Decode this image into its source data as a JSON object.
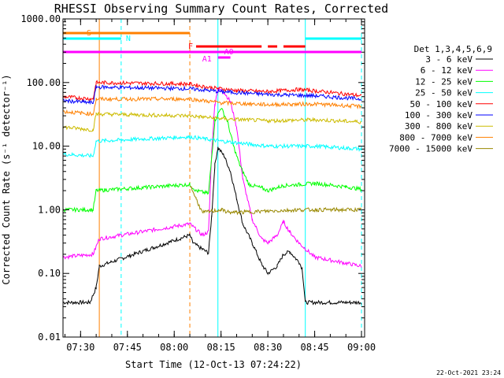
{
  "chart_data": {
    "type": "line",
    "title": "RHESSI Observing Summary Count Rates, Corrected",
    "xlabel": "Start Time (12-Oct-13 07:24:22)",
    "ylabel": "Corrected Count Rate (s⁻¹ detector⁻¹)",
    "yscale": "log",
    "ylim": [
      0.01,
      1000
    ],
    "xlim": [
      "07:24:22",
      "09:01:00"
    ],
    "x_ticks": [
      "07:30",
      "07:45",
      "08:00",
      "08:15",
      "08:30",
      "08:45",
      "09:00"
    ],
    "y_ticks": [
      "1000.00",
      "100.00",
      "10.00",
      "1.00",
      "0.10",
      "0.01"
    ],
    "legend_title": "Det 1,3,4,5,6,9",
    "legend_position": "right",
    "series": [
      {
        "name": "3 - 6 keV",
        "color": "#000000",
        "points": [
          [
            "07:24:22",
            0.035
          ],
          [
            "07:33",
            0.035
          ],
          [
            "07:35",
            0.06
          ],
          [
            "07:36",
            0.13
          ],
          [
            "08:05",
            0.4
          ],
          [
            "08:06",
            0.3
          ],
          [
            "08:09",
            0.24
          ],
          [
            "08:11",
            0.21
          ],
          [
            "08:12",
            0.8
          ],
          [
            "08:13",
            5
          ],
          [
            "08:14",
            9.5
          ],
          [
            "08:16",
            7
          ],
          [
            "08:18",
            4
          ],
          [
            "08:20",
            1.5
          ],
          [
            "08:22",
            0.6
          ],
          [
            "08:25",
            0.3
          ],
          [
            "08:28",
            0.14
          ],
          [
            "08:30",
            0.1
          ],
          [
            "08:33",
            0.13
          ],
          [
            "08:35",
            0.2
          ],
          [
            "08:37",
            0.22
          ],
          [
            "08:40",
            0.15
          ],
          [
            "08:41",
            0.12
          ],
          [
            "08:42",
            0.035
          ],
          [
            "09:00",
            0.035
          ]
        ]
      },
      {
        "name": "6 - 12 keV",
        "color": "#ff00ff",
        "points": [
          [
            "07:24:22",
            0.18
          ],
          [
            "07:34",
            0.2
          ],
          [
            "07:36",
            0.35
          ],
          [
            "08:05",
            0.6
          ],
          [
            "08:09",
            0.4
          ],
          [
            "08:11",
            0.45
          ],
          [
            "08:12",
            8
          ],
          [
            "08:13",
            45
          ],
          [
            "08:14",
            80
          ],
          [
            "08:16",
            70
          ],
          [
            "08:18",
            50
          ],
          [
            "08:20",
            20
          ],
          [
            "08:22",
            3
          ],
          [
            "08:25",
            0.7
          ],
          [
            "08:28",
            0.35
          ],
          [
            "08:30",
            0.3
          ],
          [
            "08:33",
            0.4
          ],
          [
            "08:35",
            0.65
          ],
          [
            "08:37",
            0.45
          ],
          [
            "08:40",
            0.3
          ],
          [
            "08:45",
            0.18
          ],
          [
            "09:00",
            0.13
          ]
        ]
      },
      {
        "name": "12 - 25 keV",
        "color": "#00ff00",
        "points": [
          [
            "07:24:22",
            1.0
          ],
          [
            "07:34",
            1.0
          ],
          [
            "07:35",
            2.0
          ],
          [
            "08:05",
            2.5
          ],
          [
            "08:07",
            2.0
          ],
          [
            "08:11",
            1.8
          ],
          [
            "08:13",
            25
          ],
          [
            "08:15",
            40
          ],
          [
            "08:17",
            25
          ],
          [
            "08:19",
            10
          ],
          [
            "08:21",
            5
          ],
          [
            "08:24",
            2.5
          ],
          [
            "08:28",
            2.2
          ],
          [
            "08:30",
            2.0
          ],
          [
            "08:35",
            2.4
          ],
          [
            "08:45",
            2.6
          ],
          [
            "08:55",
            2.3
          ],
          [
            "09:00",
            2.1
          ]
        ]
      },
      {
        "name": "25 - 50 keV",
        "color": "#00ffff",
        "points": [
          [
            "07:24:22",
            7.5
          ],
          [
            "07:34",
            7.0
          ],
          [
            "07:35",
            12
          ],
          [
            "08:05",
            14
          ],
          [
            "08:15",
            12
          ],
          [
            "08:30",
            10
          ],
          [
            "08:45",
            10
          ],
          [
            "09:00",
            9
          ]
        ]
      },
      {
        "name": "50 - 100 keV",
        "color": "#ff0000",
        "points": [
          [
            "07:24:22",
            60
          ],
          [
            "07:34",
            55
          ],
          [
            "07:35",
            100
          ],
          [
            "08:05",
            95
          ],
          [
            "08:10",
            85
          ],
          [
            "08:20",
            75
          ],
          [
            "08:30",
            72
          ],
          [
            "08:40",
            78
          ],
          [
            "08:50",
            70
          ],
          [
            "09:00",
            62
          ]
        ]
      },
      {
        "name": "100 - 300 keV",
        "color": "#0000ff",
        "points": [
          [
            "07:24:22",
            52
          ],
          [
            "07:34",
            48
          ],
          [
            "07:35",
            85
          ],
          [
            "08:05",
            80
          ],
          [
            "08:15",
            72
          ],
          [
            "08:30",
            65
          ],
          [
            "08:45",
            62
          ],
          [
            "09:00",
            55
          ]
        ]
      },
      {
        "name": "300 - 800 keV",
        "color": "#ccbb00",
        "points": [
          [
            "07:24:22",
            20
          ],
          [
            "07:34",
            18
          ],
          [
            "07:35",
            32
          ],
          [
            "08:05",
            30
          ],
          [
            "08:15",
            27
          ],
          [
            "08:30",
            25
          ],
          [
            "08:45",
            26
          ],
          [
            "09:00",
            24
          ]
        ]
      },
      {
        "name": "800 - 7000 keV",
        "color": "#ff8000",
        "points": [
          [
            "07:24:22",
            35
          ],
          [
            "07:34",
            32
          ],
          [
            "07:35",
            55
          ],
          [
            "08:05",
            55
          ],
          [
            "08:15",
            48
          ],
          [
            "08:30",
            45
          ],
          [
            "08:45",
            46
          ],
          [
            "09:00",
            42
          ]
        ]
      },
      {
        "name": "7000 - 15000 keV",
        "color": "#998800",
        "points": [
          [
            "08:05",
            2.5
          ],
          [
            "08:07",
            1.5
          ],
          [
            "08:09",
            0.9
          ],
          [
            "08:15",
            1.0
          ],
          [
            "08:18",
            0.9
          ],
          [
            "08:40",
            1.0
          ],
          [
            "09:00",
            1.0
          ]
        ]
      }
    ],
    "flags": [
      {
        "label": "S",
        "color": "#ff8000",
        "segments": [
          [
            "07:24:22",
            "07:36"
          ],
          [
            "07:36",
            "08:05"
          ]
        ]
      },
      {
        "label": "N",
        "color": "#00ffff",
        "segments": [
          [
            "07:24:22",
            "07:43"
          ],
          [
            "08:42",
            "09:00"
          ]
        ]
      },
      {
        "label": "F",
        "color": "#ff0000",
        "segments": [
          [
            "08:07",
            "08:28"
          ],
          [
            "08:30",
            "08:33"
          ],
          [
            "08:35",
            "08:42"
          ]
        ]
      },
      {
        "label": "A0",
        "color": "#ff00ff",
        "segments": [
          [
            "07:24:22",
            "09:00"
          ]
        ]
      },
      {
        "label": "A1",
        "color": "#ff00ff",
        "segments": [
          [
            "08:14",
            "08:18"
          ]
        ]
      }
    ],
    "vlines": [
      {
        "time": "07:24:22",
        "color": "#00ffff",
        "style": "solid"
      },
      {
        "time": "07:36",
        "color": "#ff8000",
        "style": "solid"
      },
      {
        "time": "07:43",
        "color": "#00ffff",
        "style": "dashed"
      },
      {
        "time": "08:05",
        "color": "#ff8000",
        "style": "dashed"
      },
      {
        "time": "08:14",
        "color": "#00ffff",
        "style": "solid"
      },
      {
        "time": "08:42",
        "color": "#00ffff",
        "style": "solid"
      },
      {
        "time": "09:00",
        "color": "#00ffff",
        "style": "dashed"
      }
    ],
    "footer_date": "22-Oct-2021 23:24"
  }
}
